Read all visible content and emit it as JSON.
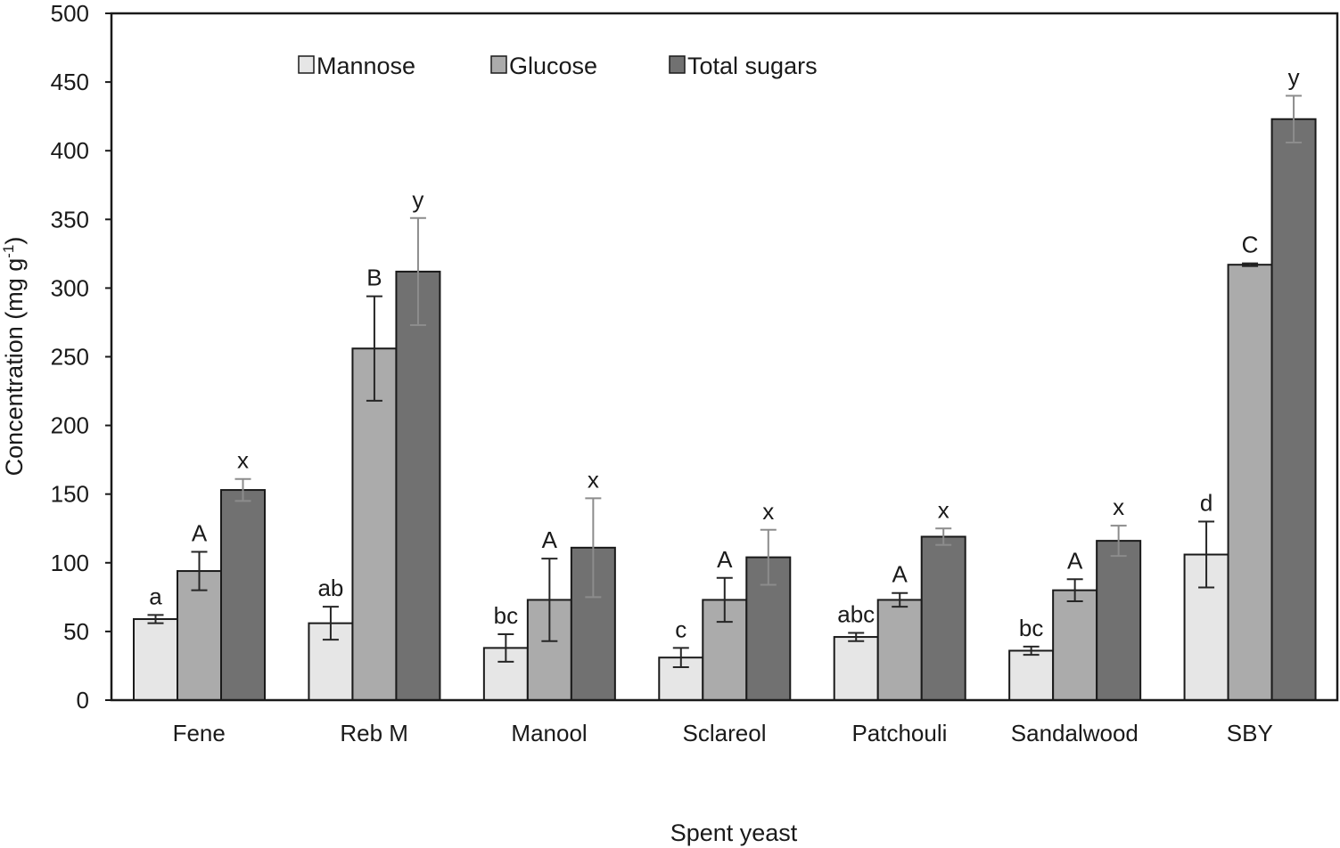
{
  "chart_data": {
    "type": "bar",
    "title": "",
    "xlabel": "Spent yeast",
    "ylabel_main": "Concentration (mg g",
    "ylabel_sup": "-1",
    "ylabel_close": ")",
    "ylim": [
      0,
      500
    ],
    "yticks": [
      0,
      50,
      100,
      150,
      200,
      250,
      300,
      350,
      400,
      450,
      500
    ],
    "grid": false,
    "legend_position": "top-center",
    "categories": [
      "Fene",
      "Reb M",
      "Manool",
      "Sclareol",
      "Patchouli",
      "Sandalwood",
      "SBY"
    ],
    "series": [
      {
        "name": "Mannose",
        "color": "#e6e6e6",
        "errorbar_color": "#262626",
        "values": [
          59,
          56,
          38,
          31,
          46,
          36,
          106
        ],
        "errors": [
          3,
          12,
          10,
          7,
          3,
          3,
          24
        ],
        "labels": [
          "a",
          "ab",
          "bc",
          "c",
          "abc",
          "bc",
          "d"
        ]
      },
      {
        "name": "Glucose",
        "color": "#ababab",
        "errorbar_color": "#262626",
        "values": [
          94,
          256,
          73,
          73,
          73,
          80,
          317
        ],
        "errors": [
          14,
          38,
          30,
          16,
          5,
          8,
          1
        ],
        "labels": [
          "A",
          "B",
          "A",
          "A",
          "A",
          "A",
          "C"
        ]
      },
      {
        "name": "Total sugars",
        "color": "#717171",
        "errorbar_color": "#8c8c8c",
        "values": [
          153,
          312,
          111,
          104,
          119,
          116,
          423
        ],
        "errors": [
          8,
          39,
          36,
          20,
          6,
          11,
          17
        ],
        "labels": [
          "x",
          "y",
          "x",
          "x",
          "x",
          "x",
          "y"
        ]
      }
    ]
  }
}
